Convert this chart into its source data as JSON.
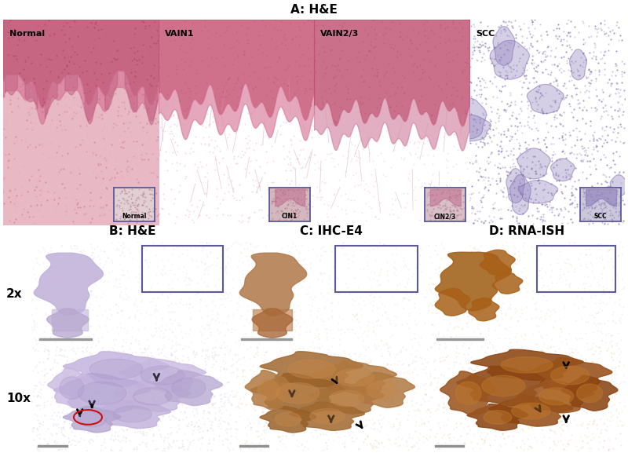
{
  "title_A": "A: H&E",
  "title_B": "B: H&E",
  "title_C": "C: IHC-E4",
  "title_D": "D: RNA-ISH",
  "panel_A_labels": [
    "Normal",
    "VAIN1",
    "VAIN2/3",
    "SCC"
  ],
  "panel_A_inset_labels": [
    "Normal",
    "CIN1",
    "CIN2/3",
    "SCC"
  ],
  "row_labels": [
    "2x",
    "10x"
  ],
  "figure_bg": "#ffffff",
  "panel_border_color": "#5a5a9a",
  "title_fontsize": 11,
  "label_fontsize": 9,
  "row_label_fontsize": 11,
  "he_pink_dark": "#d4728a",
  "he_pink_mid": "#e8a0b4",
  "he_pink_light": "#f4d0d8",
  "he_dermis": "#f0c8d4",
  "scc_purple_dark": "#8878b8",
  "scc_purple_mid": "#b0a8d0",
  "scc_purple_light": "#d8d0e8",
  "scc_blue_bg": "#e8e4f4",
  "ihc_brown_dark": "#8b4513",
  "ihc_brown_mid": "#c07840",
  "ihc_bg": "#f5ece8",
  "rna_brown_dark": "#7b3a10",
  "rna_brown_mid": "#b06820",
  "rna_bg": "#f2ebe0",
  "arrow_color": "#000000",
  "circle_color": "#cc1010",
  "scale_bar_color": "#d0d0d0",
  "inset_box_colors": [
    "#e8dce0",
    "#d8c0c8",
    "#e0c8d0",
    "#d8d4e8"
  ]
}
